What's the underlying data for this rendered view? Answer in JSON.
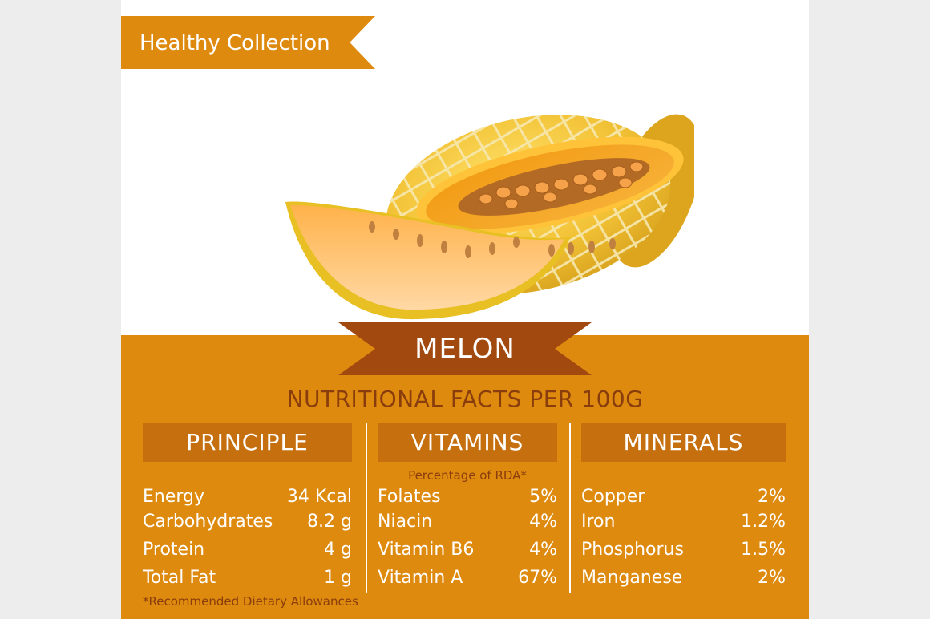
{
  "brand_tag": "Healthy Collection",
  "product": "MELON",
  "facts_title": "NUTRITIONAL FACTS PER 100G",
  "principle": {
    "heading": "PRINCIPLE",
    "items": [
      {
        "label": "Energy",
        "value": "34 Kcal"
      },
      {
        "label": "Carbohydrates",
        "value": "8.2 g"
      },
      {
        "label": "Protein",
        "value": "4 g"
      },
      {
        "label": "Total Fat",
        "value": "1 g"
      }
    ]
  },
  "vitamins": {
    "heading": "VITAMINS",
    "note": "Percentage of RDA*",
    "items": [
      {
        "label": "Folates",
        "value": "5%"
      },
      {
        "label": "Niacin",
        "value": "4%"
      },
      {
        "label": "Vitamin B6",
        "value": "4%"
      },
      {
        "label": "Vitamin A",
        "value": "67%"
      }
    ]
  },
  "minerals": {
    "heading": "MINERALS",
    "items": [
      {
        "label": "Copper",
        "value": "2%"
      },
      {
        "label": "Iron",
        "value": "1.2%"
      },
      {
        "label": "Phosphorus",
        "value": "1.5%"
      },
      {
        "label": "Manganese",
        "value": "2%"
      }
    ]
  },
  "footnote": "*Recommended Dietary Allowances",
  "colors": {
    "accent": "#de8a0f",
    "header_fill": "#c56f0f",
    "banner": "#a2490f",
    "dark_text": "#8a3d0c"
  }
}
